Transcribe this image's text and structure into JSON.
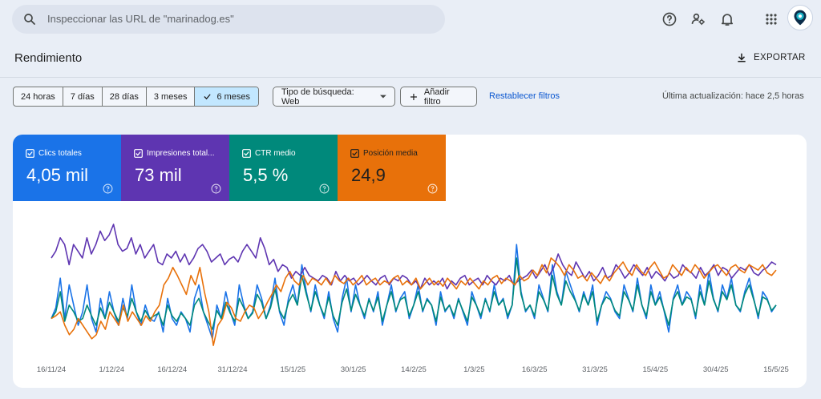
{
  "search": {
    "placeholder": "Inspeccionar las URL de \"marinadog.es\""
  },
  "topbar": {
    "icons": [
      "help-icon",
      "manage-users-icon",
      "bell-icon",
      "apps-grid-icon",
      "avatar"
    ]
  },
  "page": {
    "title": "Rendimiento",
    "export_label": "EXPORTAR"
  },
  "filters": {
    "date_ranges": [
      "24 horas",
      "7 días",
      "28 días",
      "3 meses",
      "6 meses"
    ],
    "selected_range": "6 meses",
    "search_type": "Tipo de búsqueda: Web",
    "add_filter": "Añadir filtro",
    "reset": "Restablecer filtros",
    "last_update": "Última actualización: hace 2,5 horas"
  },
  "metrics": [
    {
      "label": "Clics totales",
      "value": "4,05 mil",
      "color": "#1a73e8"
    },
    {
      "label": "Impresiones total...",
      "value": "73 mil",
      "color": "#5e35b1"
    },
    {
      "label": "CTR medio",
      "value": "5,5 %",
      "color": "#00897b"
    },
    {
      "label": "Posición media",
      "value": "24,9",
      "color": "#e8710a"
    }
  ],
  "chart_data": {
    "type": "line",
    "x_tick_labels": [
      "16/11/24",
      "1/12/24",
      "16/12/24",
      "31/12/24",
      "15/1/25",
      "30/1/25",
      "14/2/25",
      "1/3/25",
      "16/3/25",
      "31/3/25",
      "15/4/25",
      "30/4/25",
      "15/5/25"
    ],
    "x_range": [
      "16/11/24",
      "15/5/25"
    ],
    "grid": false,
    "y_axis_labels_shown": false,
    "series": [
      {
        "name": "Clics totales",
        "color": "#1a73e8",
        "values": [
          0.3,
          0.38,
          0.6,
          0.3,
          0.55,
          0.4,
          0.25,
          0.35,
          0.55,
          0.3,
          0.2,
          0.45,
          0.3,
          0.5,
          0.35,
          0.25,
          0.45,
          0.3,
          0.55,
          0.35,
          0.25,
          0.4,
          0.3,
          0.28,
          0.35,
          0.2,
          0.45,
          0.3,
          0.25,
          0.35,
          0.3,
          0.2,
          0.45,
          0.55,
          0.35,
          0.25,
          0.15,
          0.4,
          0.3,
          0.5,
          0.35,
          0.25,
          0.55,
          0.4,
          0.3,
          0.35,
          0.55,
          0.45,
          0.3,
          0.4,
          0.6,
          0.35,
          0.25,
          0.45,
          0.55,
          0.4,
          0.7,
          0.5,
          0.35,
          0.55,
          0.4,
          0.3,
          0.5,
          0.3,
          0.2,
          0.45,
          0.6,
          0.35,
          0.55,
          0.4,
          0.3,
          0.45,
          0.35,
          0.5,
          0.25,
          0.4,
          0.55,
          0.35,
          0.45,
          0.5,
          0.3,
          0.4,
          0.55,
          0.35,
          0.45,
          0.4,
          0.25,
          0.5,
          0.35,
          0.4,
          0.3,
          0.45,
          0.35,
          0.25,
          0.5,
          0.4,
          0.3,
          0.45,
          0.35,
          0.55,
          0.4,
          0.45,
          0.3,
          0.4,
          0.85,
          0.5,
          0.35,
          0.4,
          0.3,
          0.55,
          0.45,
          0.35,
          0.7,
          0.5,
          0.4,
          0.65,
          0.55,
          0.45,
          0.35,
          0.5,
          0.4,
          0.55,
          0.25,
          0.4,
          0.5,
          0.45,
          0.35,
          0.3,
          0.55,
          0.45,
          0.35,
          0.6,
          0.4,
          0.3,
          0.55,
          0.4,
          0.5,
          0.35,
          0.2,
          0.45,
          0.55,
          0.4,
          0.5,
          0.45,
          0.3,
          0.55,
          0.4,
          0.65,
          0.45,
          0.35,
          0.55,
          0.45,
          0.6,
          0.4,
          0.35,
          0.5,
          0.6,
          0.45,
          0.3,
          0.5,
          0.45,
          0.35,
          0.4
        ]
      },
      {
        "name": "Impresiones totales",
        "color": "#5e35b1",
        "values": [
          0.75,
          0.8,
          0.9,
          0.85,
          0.7,
          0.85,
          0.8,
          0.75,
          0.9,
          0.78,
          0.85,
          0.95,
          0.88,
          0.92,
          1.0,
          0.85,
          0.8,
          0.82,
          0.9,
          0.78,
          0.85,
          0.75,
          0.8,
          0.85,
          0.72,
          0.7,
          0.78,
          0.75,
          0.8,
          0.72,
          0.78,
          0.7,
          0.75,
          0.82,
          0.85,
          0.8,
          0.72,
          0.75,
          0.78,
          0.7,
          0.74,
          0.76,
          0.72,
          0.8,
          0.85,
          0.8,
          0.75,
          0.9,
          0.82,
          0.7,
          0.74,
          0.65,
          0.7,
          0.68,
          0.6,
          0.65,
          0.62,
          0.68,
          0.62,
          0.6,
          0.58,
          0.62,
          0.6,
          0.55,
          0.65,
          0.58,
          0.62,
          0.58,
          0.6,
          0.55,
          0.58,
          0.62,
          0.58,
          0.55,
          0.6,
          0.62,
          0.55,
          0.6,
          0.58,
          0.62,
          0.6,
          0.55,
          0.58,
          0.52,
          0.6,
          0.55,
          0.58,
          0.55,
          0.6,
          0.52,
          0.58,
          0.55,
          0.6,
          0.62,
          0.55,
          0.58,
          0.6,
          0.55,
          0.62,
          0.58,
          0.55,
          0.6,
          0.58,
          0.62,
          0.55,
          0.58,
          0.6,
          0.62,
          0.66,
          0.6,
          0.65,
          0.7,
          0.62,
          0.68,
          0.78,
          0.7,
          0.65,
          0.62,
          0.72,
          0.66,
          0.6,
          0.65,
          0.58,
          0.62,
          0.68,
          0.6,
          0.62,
          0.7,
          0.66,
          0.6,
          0.64,
          0.7,
          0.66,
          0.62,
          0.68,
          0.6,
          0.65,
          0.62,
          0.58,
          0.64,
          0.6,
          0.62,
          0.7,
          0.66,
          0.64,
          0.6,
          0.68,
          0.62,
          0.65,
          0.7,
          0.62,
          0.68,
          0.66,
          0.6,
          0.64,
          0.68,
          0.66,
          0.7,
          0.64,
          0.62,
          0.66,
          0.68,
          0.72,
          0.7
        ]
      },
      {
        "name": "CTR medio",
        "color": "#00897b",
        "values": [
          0.3,
          0.35,
          0.5,
          0.28,
          0.4,
          0.35,
          0.28,
          0.3,
          0.4,
          0.32,
          0.25,
          0.38,
          0.3,
          0.42,
          0.35,
          0.28,
          0.38,
          0.32,
          0.45,
          0.35,
          0.28,
          0.36,
          0.3,
          0.32,
          0.34,
          0.25,
          0.4,
          0.32,
          0.28,
          0.34,
          0.3,
          0.25,
          0.4,
          0.45,
          0.35,
          0.28,
          0.22,
          0.36,
          0.3,
          0.42,
          0.34,
          0.28,
          0.45,
          0.38,
          0.3,
          0.34,
          0.48,
          0.42,
          0.3,
          0.38,
          0.52,
          0.36,
          0.3,
          0.42,
          0.48,
          0.4,
          0.62,
          0.48,
          0.36,
          0.5,
          0.4,
          0.32,
          0.46,
          0.32,
          0.25,
          0.42,
          0.52,
          0.36,
          0.48,
          0.4,
          0.32,
          0.44,
          0.36,
          0.46,
          0.28,
          0.4,
          0.5,
          0.36,
          0.44,
          0.46,
          0.32,
          0.4,
          0.5,
          0.36,
          0.44,
          0.4,
          0.28,
          0.46,
          0.36,
          0.4,
          0.32,
          0.44,
          0.36,
          0.28,
          0.46,
          0.4,
          0.32,
          0.44,
          0.36,
          0.5,
          0.4,
          0.44,
          0.32,
          0.4,
          0.75,
          0.48,
          0.36,
          0.4,
          0.32,
          0.5,
          0.44,
          0.36,
          0.62,
          0.48,
          0.4,
          0.58,
          0.5,
          0.44,
          0.36,
          0.48,
          0.4,
          0.5,
          0.28,
          0.4,
          0.46,
          0.44,
          0.36,
          0.32,
          0.5,
          0.44,
          0.36,
          0.55,
          0.4,
          0.32,
          0.5,
          0.4,
          0.46,
          0.36,
          0.25,
          0.44,
          0.5,
          0.4,
          0.46,
          0.44,
          0.32,
          0.5,
          0.4,
          0.58,
          0.44,
          0.36,
          0.5,
          0.44,
          0.55,
          0.4,
          0.36,
          0.48,
          0.55,
          0.44,
          0.32,
          0.46,
          0.44,
          0.36,
          0.4
        ]
      },
      {
        "name": "Posición media",
        "color": "#e8710a",
        "values": [
          0.3,
          0.32,
          0.35,
          0.25,
          0.18,
          0.22,
          0.3,
          0.25,
          0.2,
          0.15,
          0.18,
          0.28,
          0.22,
          0.35,
          0.3,
          0.25,
          0.4,
          0.28,
          0.35,
          0.3,
          0.25,
          0.32,
          0.28,
          0.35,
          0.4,
          0.55,
          0.6,
          0.68,
          0.62,
          0.55,
          0.48,
          0.62,
          0.55,
          0.68,
          0.5,
          0.35,
          0.1,
          0.25,
          0.3,
          0.42,
          0.38,
          0.3,
          0.28,
          0.35,
          0.4,
          0.38,
          0.3,
          0.35,
          0.42,
          0.48,
          0.55,
          0.5,
          0.6,
          0.65,
          0.58,
          0.55,
          0.62,
          0.55,
          0.6,
          0.58,
          0.55,
          0.6,
          0.55,
          0.62,
          0.58,
          0.56,
          0.6,
          0.55,
          0.58,
          0.62,
          0.55,
          0.58,
          0.6,
          0.55,
          0.58,
          0.56,
          0.6,
          0.62,
          0.55,
          0.58,
          0.55,
          0.6,
          0.52,
          0.56,
          0.6,
          0.55,
          0.58,
          0.54,
          0.6,
          0.56,
          0.52,
          0.58,
          0.55,
          0.6,
          0.56,
          0.52,
          0.58,
          0.55,
          0.6,
          0.62,
          0.56,
          0.6,
          0.58,
          0.55,
          0.62,
          0.58,
          0.6,
          0.66,
          0.62,
          0.7,
          0.64,
          0.75,
          0.72,
          0.68,
          0.62,
          0.7,
          0.66,
          0.6,
          0.62,
          0.58,
          0.64,
          0.6,
          0.56,
          0.62,
          0.58,
          0.64,
          0.68,
          0.72,
          0.66,
          0.62,
          0.7,
          0.65,
          0.62,
          0.68,
          0.72,
          0.66,
          0.6,
          0.62,
          0.7,
          0.66,
          0.62,
          0.68,
          0.64,
          0.7,
          0.66,
          0.6,
          0.64,
          0.68,
          0.7,
          0.66,
          0.62,
          0.68,
          0.7,
          0.66,
          0.64,
          0.7,
          0.68,
          0.66,
          0.7,
          0.64,
          0.62,
          0.66
        ]
      }
    ]
  }
}
